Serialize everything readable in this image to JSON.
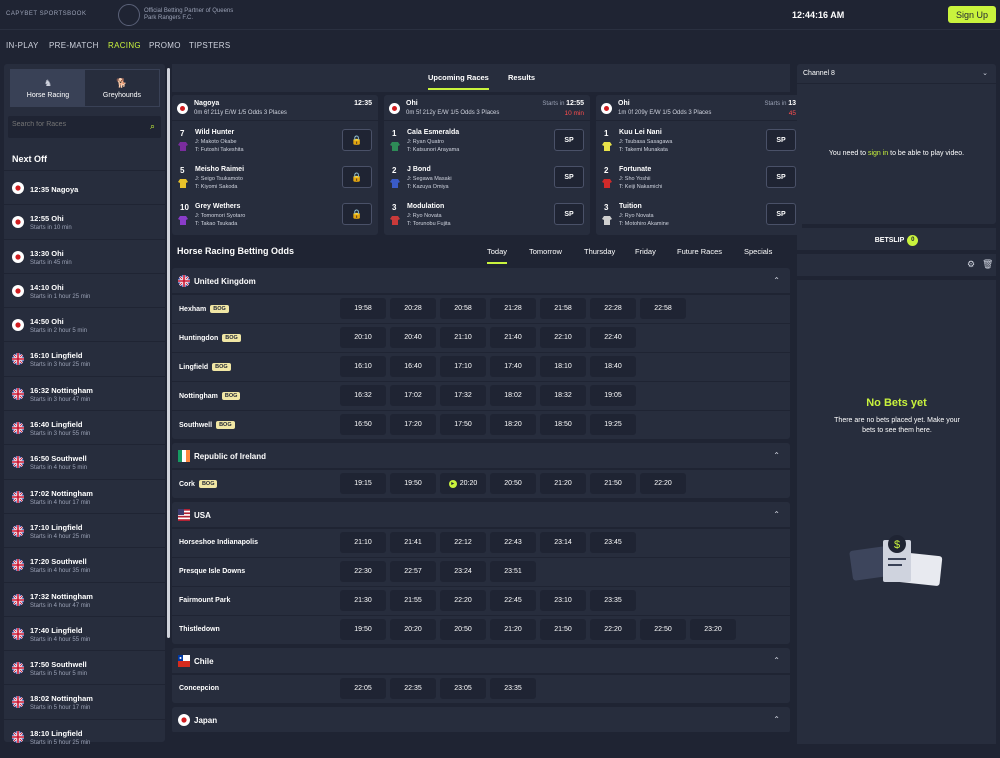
{
  "header": {
    "logo": "CAPYBET SPORTSBOOK",
    "partner": "Official Betting Partner of Queens Park Rangers F.C.",
    "clock": "12:44:16  AM",
    "signup": "Sign Up"
  },
  "nav": [
    "IN-PLAY",
    "PRE-MATCH",
    "RACING",
    "PROMO",
    "TIPSTERS"
  ],
  "sports": [
    {
      "label": "Horse Racing",
      "icon": "horse-icon"
    },
    {
      "label": "Greyhounds",
      "icon": "greyhound-icon"
    }
  ],
  "search_placeholder": "Search for Races",
  "next_off_title": "Next Off",
  "next_off": [
    {
      "time": "12:35 Nagoya",
      "sub": "",
      "flag": "jp"
    },
    {
      "time": "12:55 Ohi",
      "sub": "Starts in 10 min",
      "flag": "jp"
    },
    {
      "time": "13:30 Ohi",
      "sub": "Starts in 45 min",
      "flag": "jp"
    },
    {
      "time": "14:10 Ohi",
      "sub": "Starts in 1 hour 25 min",
      "flag": "jp"
    },
    {
      "time": "14:50 Ohi",
      "sub": "Starts in 2 hour 5 min",
      "flag": "jp"
    },
    {
      "time": "16:10 Lingfield",
      "sub": "Starts in 3 hour 25 min",
      "flag": "uk"
    },
    {
      "time": "16:32 Nottingham",
      "sub": "Starts in 3 hour 47 min",
      "flag": "uk"
    },
    {
      "time": "16:40 Lingfield",
      "sub": "Starts in 3 hour 55 min",
      "flag": "uk"
    },
    {
      "time": "16:50 Southwell",
      "sub": "Starts in 4 hour 5 min",
      "flag": "uk"
    },
    {
      "time": "17:02 Nottingham",
      "sub": "Starts in 4 hour 17 min",
      "flag": "uk"
    },
    {
      "time": "17:10 Lingfield",
      "sub": "Starts in 4 hour 25 min",
      "flag": "uk"
    },
    {
      "time": "17:20 Southwell",
      "sub": "Starts in 4 hour 35 min",
      "flag": "uk"
    },
    {
      "time": "17:32 Nottingham",
      "sub": "Starts in 4 hour 47 min",
      "flag": "uk"
    },
    {
      "time": "17:40 Lingfield",
      "sub": "Starts in 4 hour 55 min",
      "flag": "uk"
    },
    {
      "time": "17:50 Southwell",
      "sub": "Starts in 5 hour 5 min",
      "flag": "uk"
    },
    {
      "time": "18:02 Nottingham",
      "sub": "Starts in 5 hour 17 min",
      "flag": "uk"
    },
    {
      "time": "18:10 Lingfield",
      "sub": "Starts in 5 hour 25 min",
      "flag": "uk"
    }
  ],
  "race_tabs": [
    "Upcoming Races",
    "Results"
  ],
  "race_cards": [
    {
      "venue": "Nagoya",
      "info": "0m 6f 211y E/W 1/5 Odds 3 Places",
      "starts": "",
      "time": "12:35",
      "mins": "",
      "runners": [
        {
          "num": "7",
          "name": "Wild Hunter",
          "jockey": "J: Makoto Okabe",
          "trainer": "T: Futoshi Takeshita",
          "btn": "🔒",
          "lock": true,
          "silk": "#7a2c9e"
        },
        {
          "num": "5",
          "name": "Meisho Raimei",
          "jockey": "J: Seigo Tsukamoto",
          "trainer": "T: Kiyomi Sakoda",
          "btn": "🔒",
          "lock": true,
          "silk": "#e8c22a"
        },
        {
          "num": "10",
          "name": "Grey Wethers",
          "jockey": "J: Tomomori Syotaro",
          "trainer": "T: Takao Tsukada",
          "btn": "🔒",
          "lock": true,
          "silk": "#8a3cc9"
        }
      ]
    },
    {
      "venue": "Ohi",
      "info": "0m 5f 212y E/W 1/5 Odds 3 Places",
      "starts": "Starts in",
      "time": "12:55",
      "mins": "10 min",
      "runners": [
        {
          "num": "1",
          "name": "Cala Esmeralda",
          "jockey": "J: Ryan Quatro",
          "trainer": "T: Katsunori Arayama",
          "btn": "SP",
          "lock": false,
          "silk": "#2e8b57"
        },
        {
          "num": "2",
          "name": "J Bond",
          "jockey": "J: Segawa Masaki",
          "trainer": "T: Kazuya Omiya",
          "btn": "SP",
          "lock": false,
          "silk": "#3a5bc7"
        },
        {
          "num": "3",
          "name": "Modulation",
          "jockey": "J: Ryo Novata",
          "trainer": "T: Torunobu Fujita",
          "btn": "SP",
          "lock": false,
          "silk": "#c93a3a"
        }
      ]
    },
    {
      "venue": "Ohi",
      "info": "1m 0f 209y E/W 1/5 Odds 3 Places",
      "starts": "Starts in",
      "time": "13",
      "mins": "45",
      "runners": [
        {
          "num": "1",
          "name": "Kuu Lei Nani",
          "jockey": "J: Tsubasa Sasagawa",
          "trainer": "T: Takemi Munakata",
          "btn": "SP",
          "lock": false,
          "silk": "#e8e24a"
        },
        {
          "num": "2",
          "name": "Fortunate",
          "jockey": "J: Sho Yoshii",
          "trainer": "T: Keiji Nakamichi",
          "btn": "SP",
          "lock": false,
          "silk": "#d02a2a"
        },
        {
          "num": "3",
          "name": "Tuition",
          "jockey": "J: Ryo Novata",
          "trainer": "T: Motohiro Akamine",
          "btn": "SP",
          "lock": false,
          "silk": "#cfcfcf"
        }
      ]
    }
  ],
  "odds_title": "Horse Racing Betting Odds",
  "day_tabs": [
    "Today",
    "Tomorrow",
    "Thursday",
    "Friday",
    "Future Races",
    "Specials"
  ],
  "countries": [
    {
      "name": "United Kingdom",
      "flag": "uk",
      "meetings": [
        {
          "name": "Hexham",
          "bog": "BOG",
          "times": [
            "19:58",
            "20:28",
            "20:58",
            "21:28",
            "21:58",
            "22:28",
            "22:58"
          ]
        },
        {
          "name": "Huntingdon",
          "bog": "BOG",
          "times": [
            "20:10",
            "20:40",
            "21:10",
            "21:40",
            "22:10",
            "22:40"
          ]
        },
        {
          "name": "Lingfield",
          "bog": "BOG",
          "times": [
            "16:10",
            "16:40",
            "17:10",
            "17:40",
            "18:10",
            "18:40"
          ]
        },
        {
          "name": "Nottingham",
          "bog": "BOG",
          "times": [
            "16:32",
            "17:02",
            "17:32",
            "18:02",
            "18:32",
            "19:05"
          ]
        },
        {
          "name": "Southwell",
          "bog": "BOG",
          "times": [
            "16:50",
            "17:20",
            "17:50",
            "18:20",
            "18:50",
            "19:25"
          ]
        }
      ]
    },
    {
      "name": "Republic of Ireland",
      "flag": "ie",
      "meetings": [
        {
          "name": "Cork",
          "bog": "BOG",
          "times": [
            "19:15",
            "19:50",
            "20:20",
            "20:50",
            "21:20",
            "21:50",
            "22:20"
          ],
          "live_index": 2
        }
      ]
    },
    {
      "name": "USA",
      "flag": "us",
      "meetings": [
        {
          "name": "Horseshoe Indianapolis",
          "bog": "",
          "times": [
            "21:10",
            "21:41",
            "22:12",
            "22:43",
            "23:14",
            "23:45"
          ]
        },
        {
          "name": "Presque Isle Downs",
          "bog": "",
          "times": [
            "22:30",
            "22:57",
            "23:24",
            "23:51"
          ]
        },
        {
          "name": "Fairmount Park",
          "bog": "",
          "times": [
            "21:30",
            "21:55",
            "22:20",
            "22:45",
            "23:10",
            "23:35"
          ]
        },
        {
          "name": "Thistledown",
          "bog": "",
          "times": [
            "19:50",
            "20:20",
            "20:50",
            "21:20",
            "21:50",
            "22:20",
            "22:50",
            "23:20"
          ]
        }
      ]
    },
    {
      "name": "Chile",
      "flag": "cl",
      "meetings": [
        {
          "name": "Concepcion",
          "bog": "",
          "times": [
            "22:05",
            "22:35",
            "23:05",
            "23:35"
          ]
        }
      ]
    },
    {
      "name": "Japan",
      "flag": "jp",
      "meetings": []
    }
  ],
  "channel": {
    "label": "Channel 8",
    "msg_pre": "You need to ",
    "msg_link": "sign in",
    "msg_post": " to be able to play video."
  },
  "betslip": {
    "label": "BETSLIP",
    "count": "0",
    "empty_title": "No Bets yet",
    "empty_text": "There are no bets placed yet. Make your bets to see them here."
  },
  "colors": {
    "accent": "#c9f33d",
    "bg": "#1f2433",
    "panel": "#272d3d"
  }
}
